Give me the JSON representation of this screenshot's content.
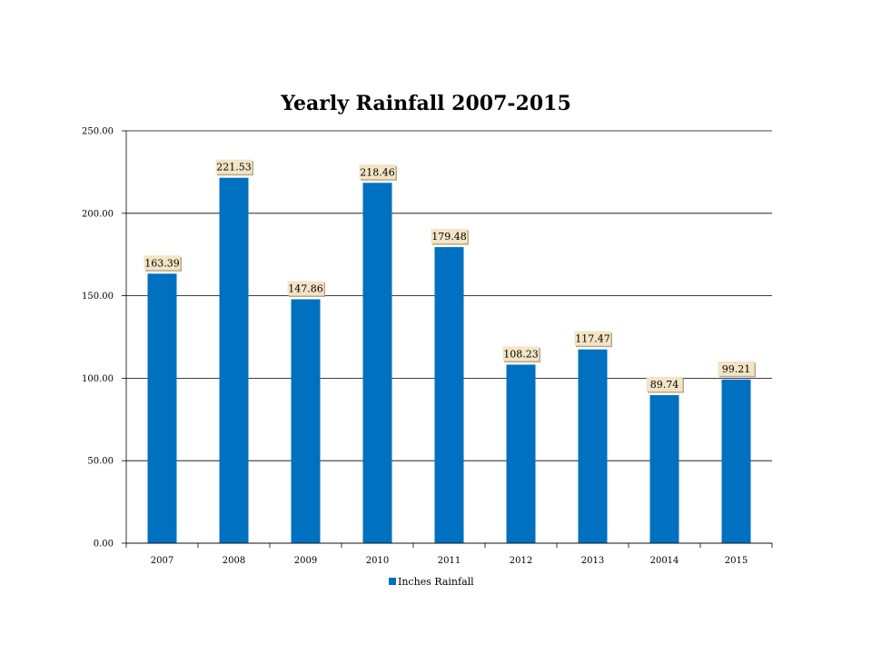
{
  "chart_data": {
    "type": "bar",
    "title": "Yearly Rainfall 2007-2015",
    "xlabel": "",
    "ylabel": "",
    "categories": [
      "2007",
      "2008",
      "2009",
      "2010",
      "2011",
      "2012",
      "2013",
      "20014",
      "2015"
    ],
    "series": [
      {
        "name": "Inches Rainfall",
        "values": [
          163.39,
          221.53,
          147.86,
          218.46,
          179.48,
          108.23,
          117.47,
          89.74,
          99.21
        ],
        "value_labels": [
          "163.39",
          "221.53",
          "147.86",
          "218.46",
          "179.48",
          "108.23",
          "117.47",
          "89.74",
          "99.21"
        ]
      }
    ],
    "y_ticks": [
      "0.00",
      "50.00",
      "100.00",
      "150.00",
      "200.00",
      "250.00"
    ],
    "ylim": [
      0,
      250
    ],
    "grid": true,
    "legend_position": "bottom",
    "colors": {
      "bar": "#0070C0",
      "label_bg": "#F2E4C4",
      "label_shadow": "#B8A88A",
      "grid": "#000000"
    }
  }
}
